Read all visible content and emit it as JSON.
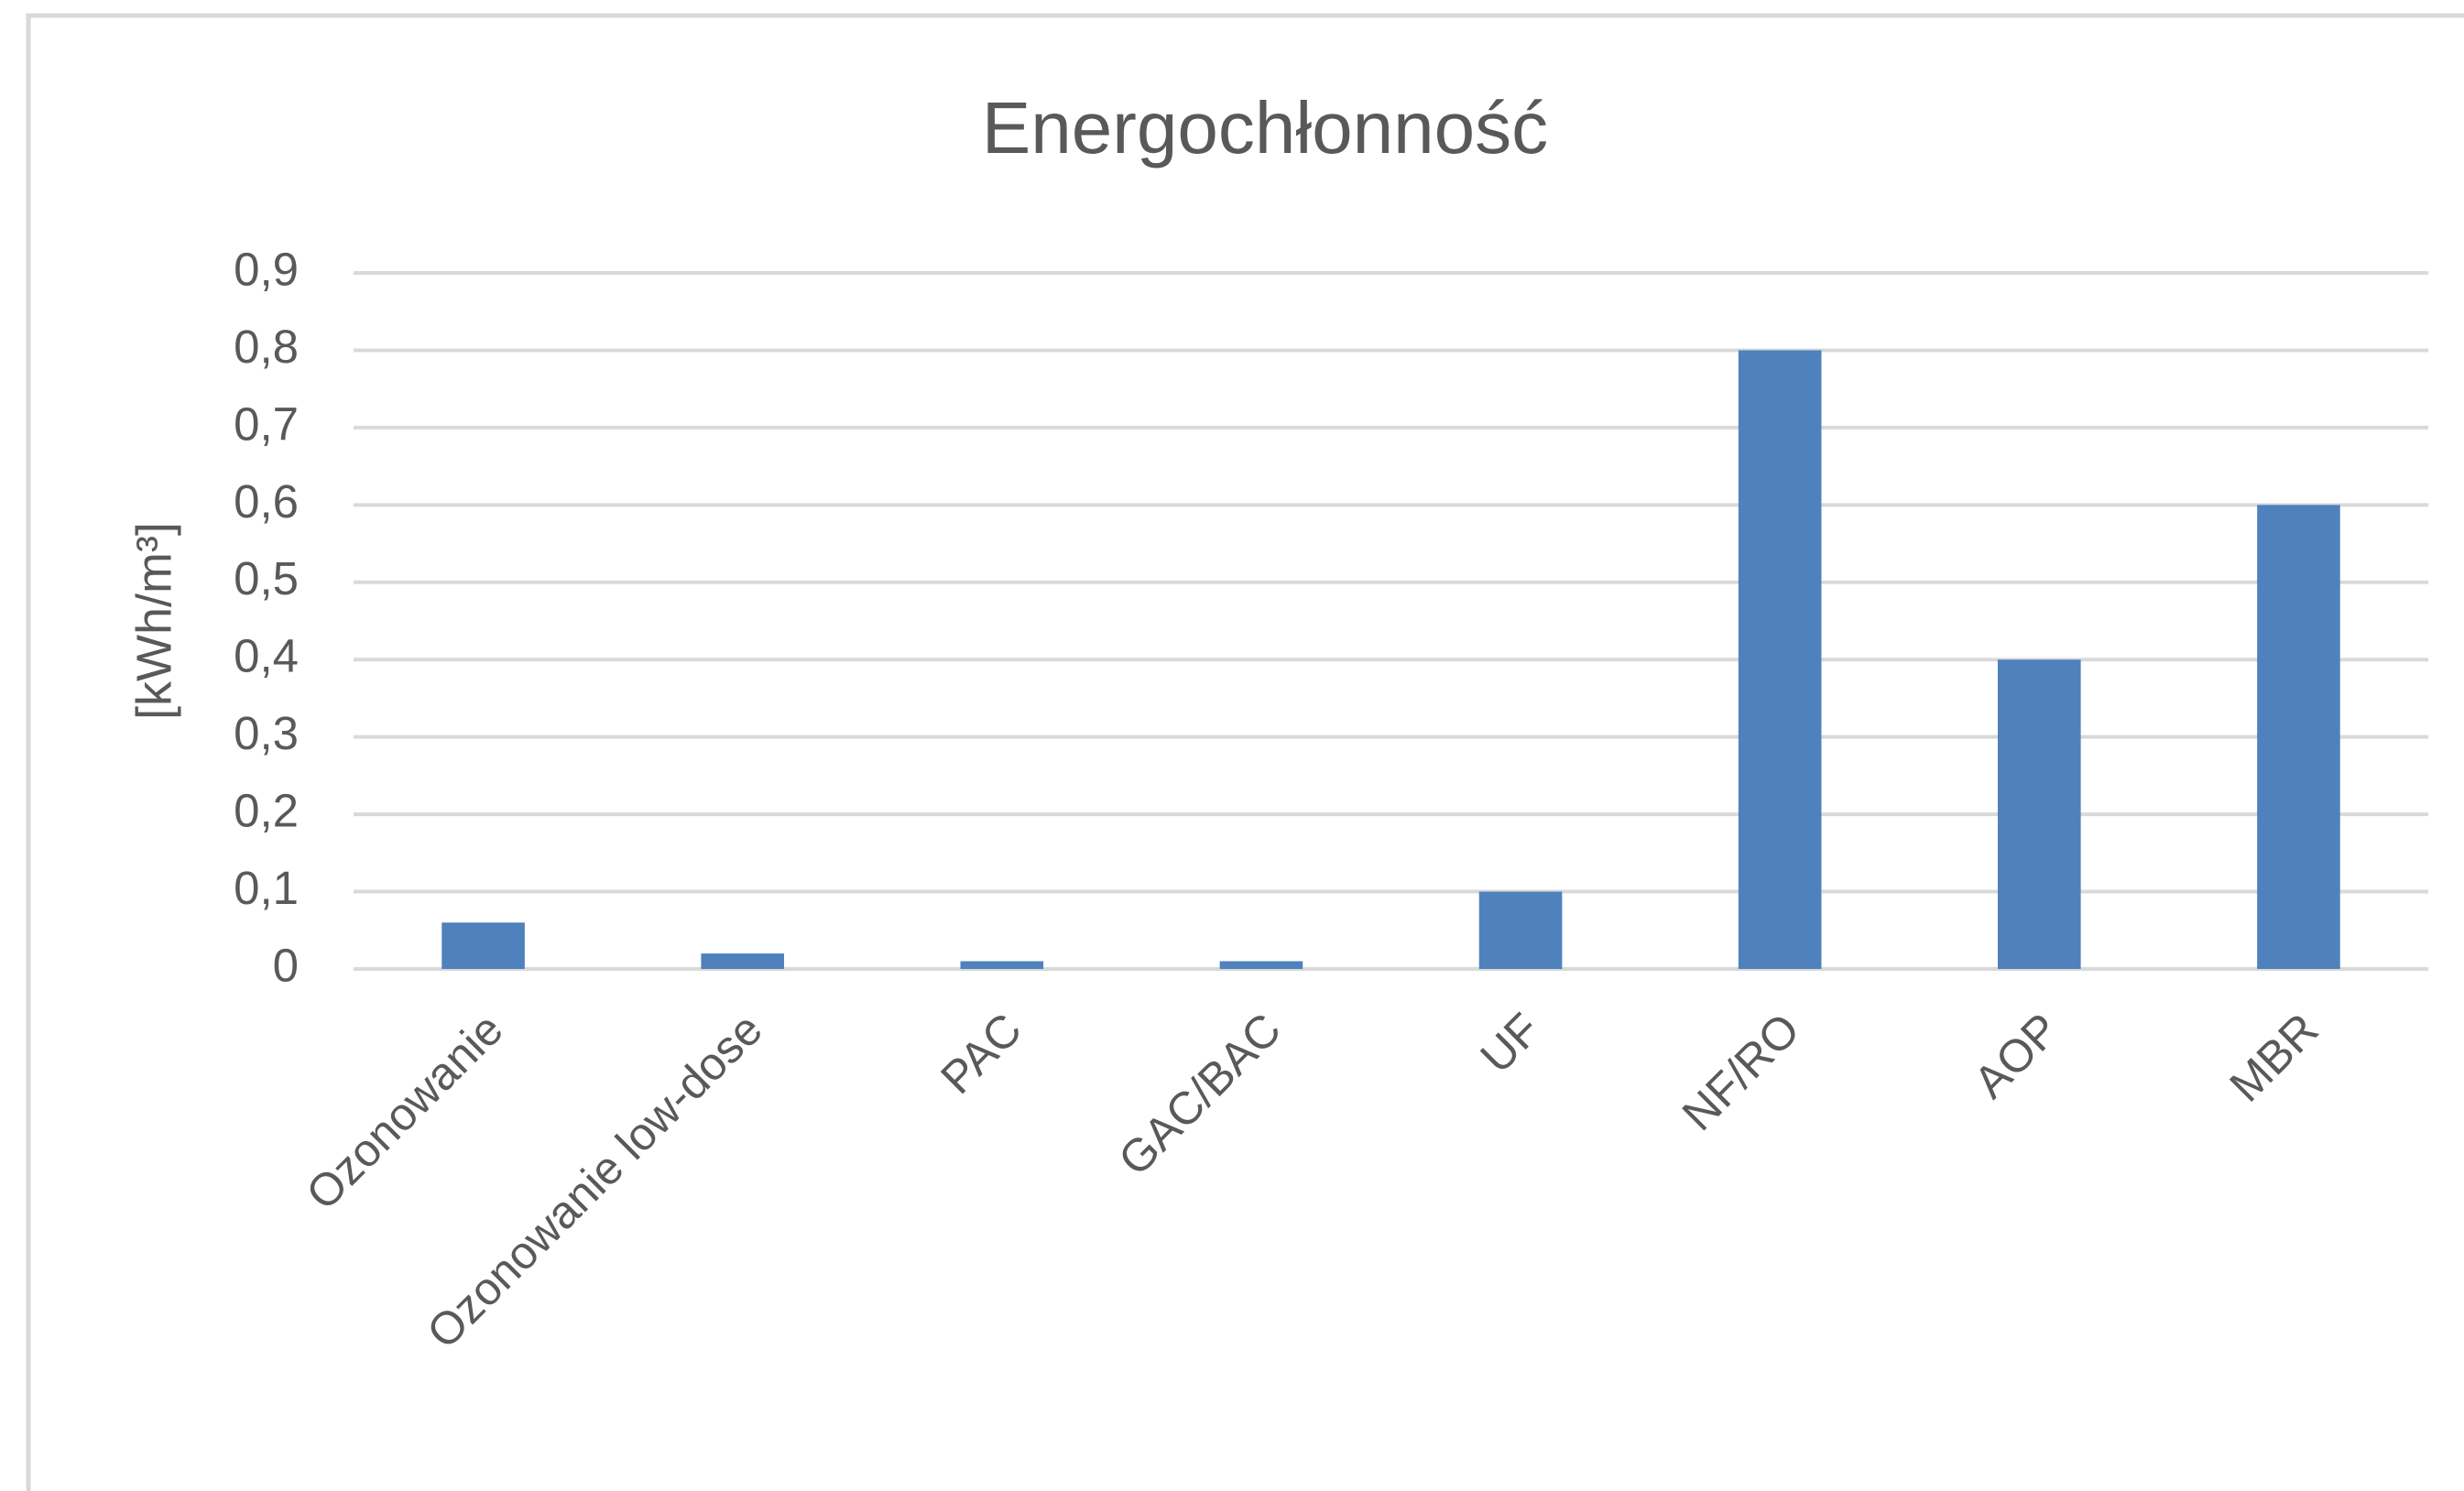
{
  "chart_data": {
    "type": "bar",
    "title": "Energochłonność",
    "y_label": "[kWh/m³]",
    "categories": [
      "Ozonowanie",
      "Ozonowanie low-dose",
      "PAC",
      "GAC/BAC",
      "UF",
      "NF/RO",
      "AOP",
      "MBR"
    ],
    "values": [
      0.06,
      0.02,
      0.01,
      0.01,
      0.1,
      0.8,
      0.4,
      0.6
    ],
    "color": "#4f81bd",
    "ylim": [
      0,
      0.9
    ],
    "yticks": [
      0,
      {
        "value": 0.1,
        "label": "0,1"
      },
      {
        "value": 0.2,
        "label": "0,2"
      },
      {
        "value": 0.3,
        "label": "0,3"
      },
      {
        "value": 0.4,
        "label": "0,4"
      },
      {
        "value": 0.5,
        "label": "0,5"
      },
      {
        "value": 0.6,
        "label": "0,6"
      },
      {
        "value": 0.7,
        "label": "0,7"
      },
      {
        "value": 0.8,
        "label": "0,8"
      },
      {
        "value": 0.9,
        "label": "0,9"
      }
    ],
    "grid": true
  }
}
